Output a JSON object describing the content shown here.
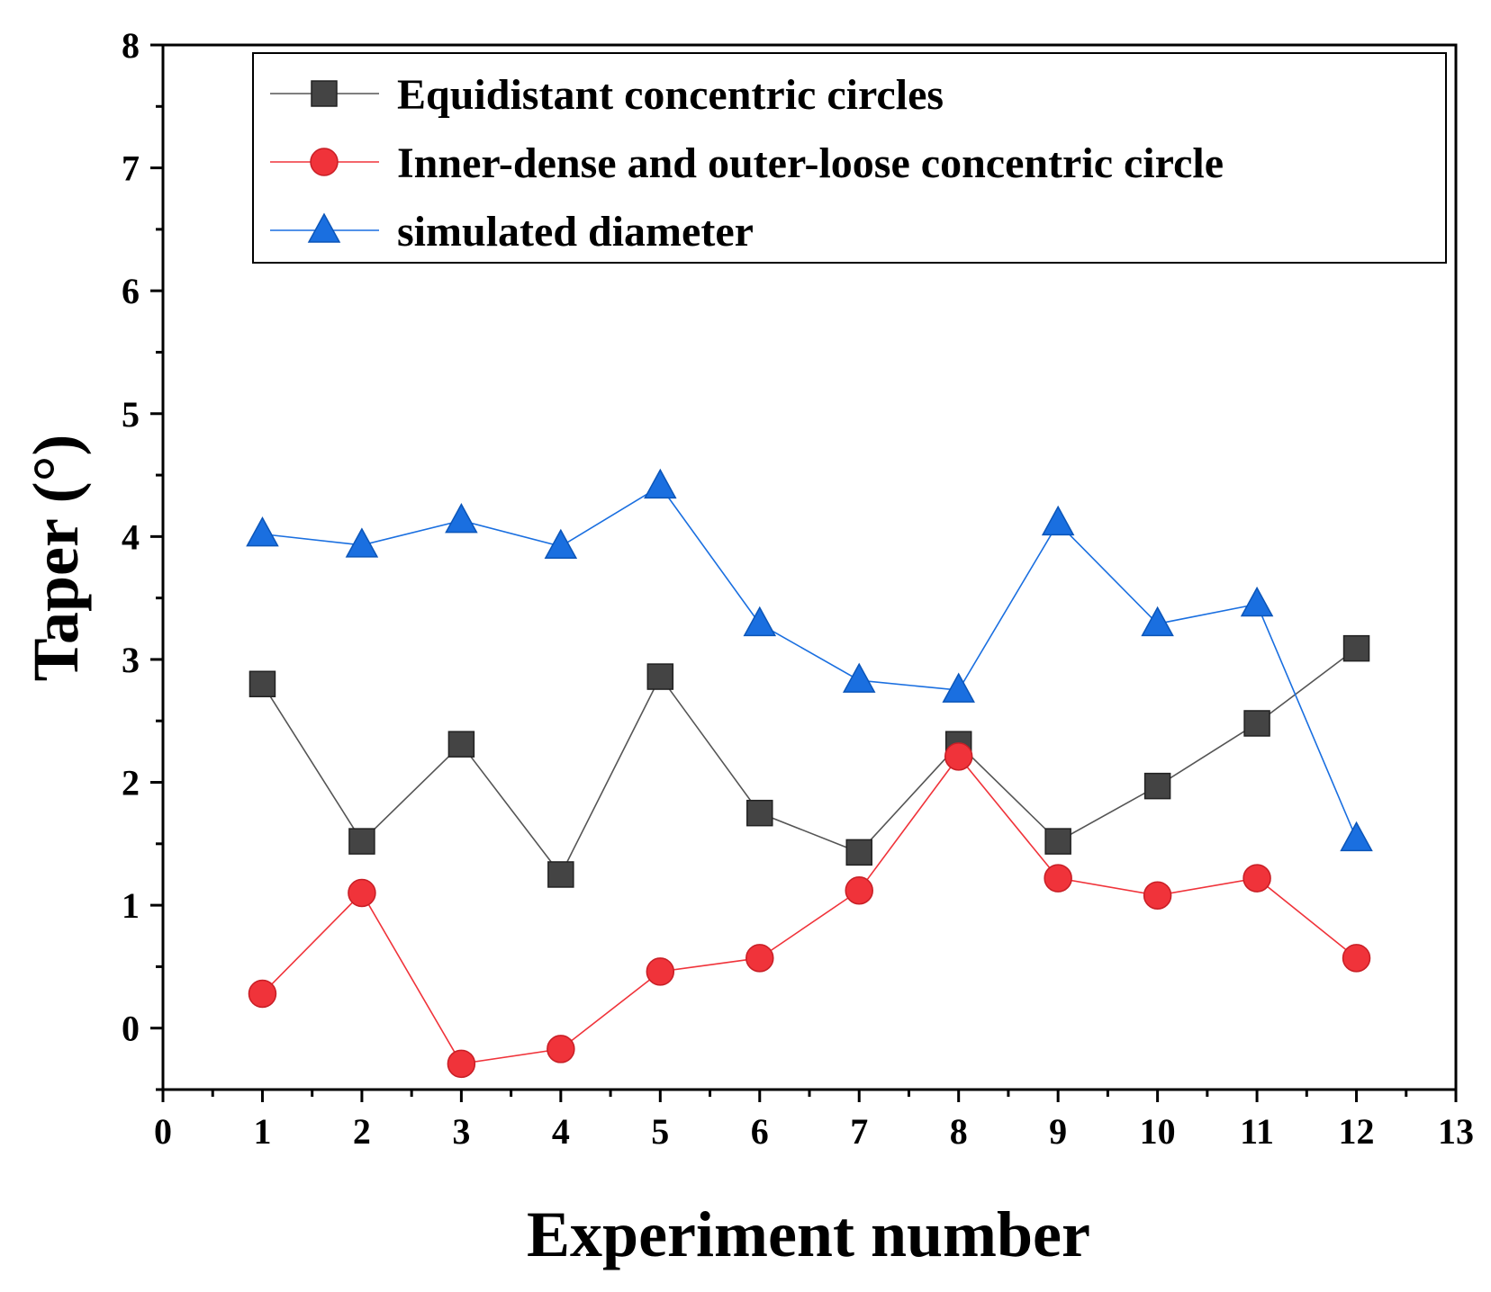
{
  "chart_data": {
    "type": "line",
    "title": "",
    "xlabel": "Experiment number",
    "ylabel": "Taper (°)",
    "xlim": [
      0,
      13
    ],
    "ylim": [
      -0.5,
      8
    ],
    "xticks": [
      0,
      1,
      2,
      3,
      4,
      5,
      6,
      7,
      8,
      9,
      10,
      11,
      12,
      13
    ],
    "yticks": [
      0,
      1,
      2,
      3,
      4,
      5,
      6,
      7,
      8
    ],
    "grid": false,
    "legend_position": "top",
    "x": [
      1,
      2,
      3,
      4,
      5,
      6,
      7,
      8,
      9,
      10,
      11,
      12
    ],
    "series": [
      {
        "name": "Equidistant concentric circles",
        "marker": "square",
        "color": "#444444",
        "line_color": "#555555",
        "values": [
          2.8,
          1.52,
          2.31,
          1.25,
          2.86,
          1.75,
          1.43,
          2.31,
          1.52,
          1.97,
          2.48,
          3.09
        ]
      },
      {
        "name": "Inner-dense and outer-loose concentric circle",
        "marker": "circle",
        "color": "#f0333a",
        "line_color": "#f0333a",
        "values": [
          0.28,
          1.1,
          -0.29,
          -0.17,
          0.46,
          0.57,
          1.12,
          2.21,
          1.22,
          1.08,
          1.22,
          0.57
        ]
      },
      {
        "name": "simulated diameter",
        "marker": "triangle",
        "color": "#1a6fe0",
        "line_color": "#1a6fe0",
        "values": [
          4.02,
          3.93,
          4.13,
          3.92,
          4.41,
          3.29,
          2.83,
          2.75,
          4.11,
          3.29,
          3.45,
          1.54
        ]
      }
    ]
  }
}
